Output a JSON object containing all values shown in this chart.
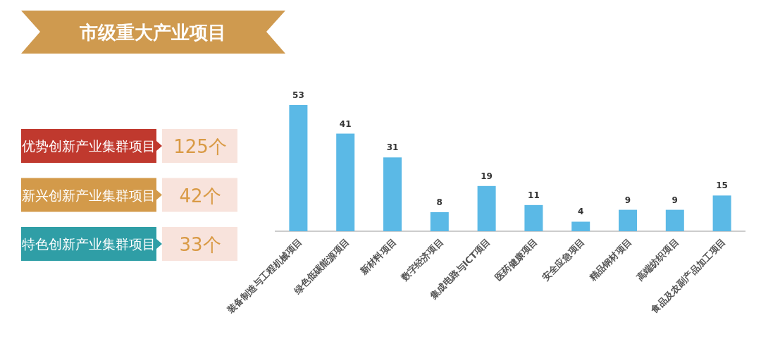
{
  "chart_data": [
    {
      "type": "other",
      "title": "市级重大产业项目",
      "categories": [
        "优势创新产业集群项目",
        "新兴创新产业集群项目",
        "特色创新产业集群项目"
      ],
      "annotations": [
        "125个",
        "42个",
        "33个"
      ],
      "colors": [
        "#c0392e",
        "#d39a4a",
        "#2f9ea6"
      ]
    },
    {
      "type": "bar",
      "categories": [
        "装备制造与工程机械项目",
        "绿色低碳能源项目",
        "新材料项目",
        "数字经济项目",
        "集成电路与ICT项目",
        "医药健康项目",
        "安全应急项目",
        "精品钢材项目",
        "高端纺织项目",
        "食品及农副产品加工项目"
      ],
      "values": [
        53,
        41,
        31,
        8,
        19,
        11,
        4,
        9,
        9,
        15
      ],
      "color": "#5bb9e6",
      "data_labels": true
    }
  ]
}
